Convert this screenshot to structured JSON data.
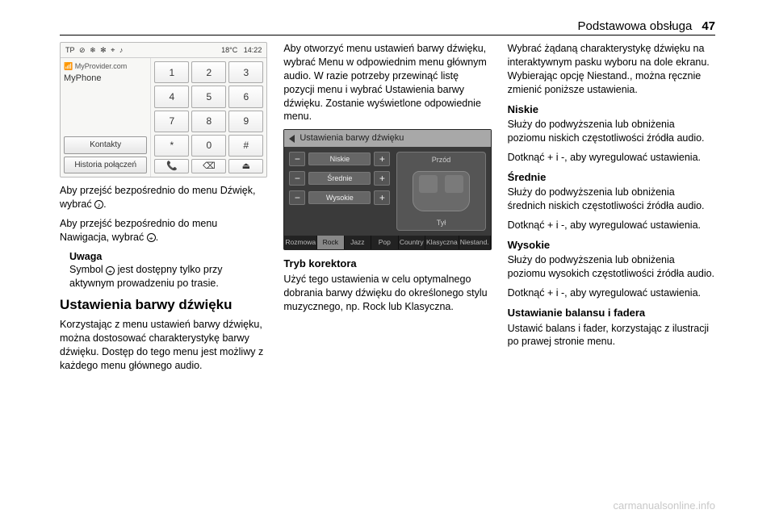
{
  "header": {
    "title": "Podstawowa obsługa",
    "page": "47"
  },
  "shot1": {
    "status_icons": [
      "TP",
      "⊘",
      "❄",
      "✻",
      "⌖",
      "♪"
    ],
    "temp": "18°C",
    "time": "14:22",
    "provider_prefix": "📶",
    "provider": "MyProvider.com",
    "phone_name": "MyPhone",
    "btn_contacts": "Kontakty",
    "btn_history": "Historia połączeń",
    "keys": [
      "1",
      "2",
      "3",
      "4",
      "5",
      "6",
      "7",
      "8",
      "9",
      "*",
      "0",
      "#"
    ],
    "callrow": [
      "📞",
      "⌫",
      "⏏"
    ]
  },
  "col1": {
    "p1a": "Aby przejść bezpośrednio do menu Dźwięk, wybrać ",
    "p1b": ".",
    "icon1": "♪",
    "p2a": "Aby przejść bezpośrednio do menu Nawigacja, wybrać ",
    "p2b": ".",
    "icon2": "⌖",
    "note_label": "Uwaga",
    "note_a": "Symbol ",
    "note_icon": "⌖",
    "note_b": " jest dostępny tylko przy aktywnym prowadzeniu po trasie.",
    "h2": "Ustawienia barwy dźwięku",
    "p3": "Korzystając z menu ustawień barwy dźwięku, można dostosować charakterystykę barwy dźwięku. Dostęp do tego menu jest możliwy z każdego menu głównego audio."
  },
  "col2": {
    "p1": "Aby otworzyć menu ustawień barwy dźwięku, wybrać Menu w odpowiednim menu głównym audio. W razie potrzeby przewinąć listę pozycji menu i wybrać Ustawienia barwy dźwięku. Zostanie wyświetlone odpowiednie menu.",
    "h3": "Tryb korektora",
    "p2": "Użyć tego ustawienia w celu optymalnego dobrania barwy dźwięku do określonego stylu muzycznego, np. Rock lub Klasyczna."
  },
  "shot2": {
    "title": "Ustawienia barwy dźwięku",
    "rows": [
      "Niskie",
      "Średnie",
      "Wysokie"
    ],
    "front": "Przód",
    "rear": "Tył",
    "tabs": [
      "Rozmowa",
      "Rock",
      "Jazz",
      "Pop",
      "Country",
      "Klasyczna",
      "Niestand."
    ],
    "active_tab": 1
  },
  "col3": {
    "p1": "Wybrać żądaną charakterystykę dźwięku na interaktywnym pasku wyboru na dole ekranu. Wybierając opcję Niestand., można ręcznie zmienić poniższe ustawienia.",
    "h_low": "Niskie",
    "p_low1": "Służy do podwyższenia lub obniżenia poziomu niskich częstotliwości źródła audio.",
    "p_low2": "Dotknąć + i -, aby wyregulować ustawienia.",
    "h_mid": "Średnie",
    "p_mid1": "Służy do podwyższenia lub obniżenia średnich niskich częstotliwości źródła audio.",
    "p_mid2": "Dotknąć + i -, aby wyregulować ustawienia.",
    "h_high": "Wysokie",
    "p_high1": "Służy do podwyższenia lub obniżenia poziomu wysokich częstotliwości źródła audio.",
    "p_high2": "Dotknąć + i -, aby wyregulować ustawienia.",
    "h_bal": "Ustawianie balansu i fadera",
    "p_bal": "Ustawić balans i fader, korzystając z ilustracji po prawej stronie menu."
  },
  "watermark": "carmanualsonline.info"
}
